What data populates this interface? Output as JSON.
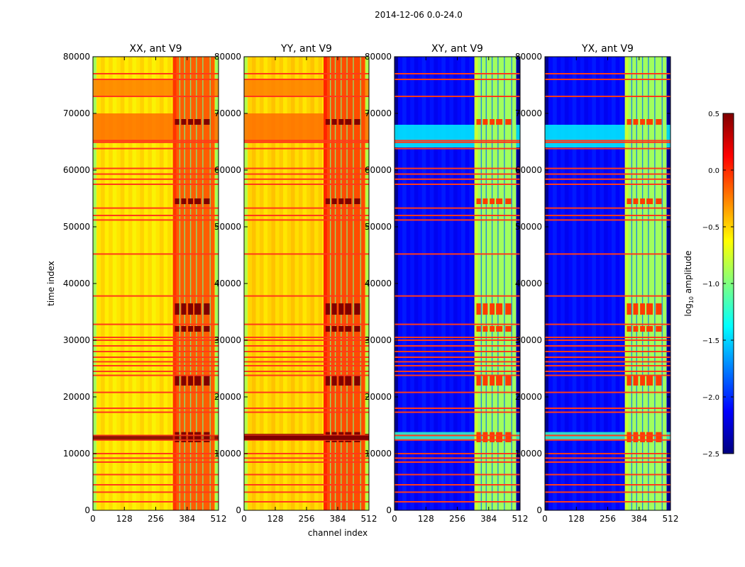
{
  "figure_title": "2014-12-06 0.0-24.0",
  "colormap": [
    "#00007f",
    "#0000ff",
    "#007fff",
    "#00ffff",
    "#7fff7f",
    "#ffff00",
    "#ff7f00",
    "#ff0000",
    "#7f0000"
  ],
  "chart_data": [
    {
      "type": "heatmap",
      "title": "XX, ant V9",
      "polarization": "XX",
      "ylabel": "time index",
      "xlabel": "",
      "xlim": [
        0,
        512
      ],
      "ylim": [
        0,
        80000
      ],
      "xticks": [
        0,
        128,
        256,
        384,
        512
      ],
      "yticks": [
        0,
        10000,
        20000,
        30000,
        40000,
        50000,
        60000,
        70000,
        80000
      ],
      "background_level": -0.55,
      "band_channels": [
        326,
        496
      ],
      "band_level": -0.15,
      "bright_time_ranges": [
        [
          65000,
          70000,
          -0.2
        ],
        [
          73000,
          76000,
          -0.25
        ],
        [
          12400,
          13200,
          0.5
        ]
      ],
      "flag_rows": [
        1500,
        3200,
        4500,
        6300,
        8500,
        9200,
        10000,
        12400,
        13200,
        17300,
        18000,
        20800,
        23800,
        24500,
        25500,
        26200,
        27000,
        28000,
        29000,
        30000,
        30500,
        32800,
        37800,
        45200,
        51200,
        52000,
        53300,
        57500,
        58400,
        59300,
        60300,
        63800,
        64900,
        65200,
        73000,
        76000,
        77000
      ]
    },
    {
      "type": "heatmap",
      "title": "YY, ant V9",
      "polarization": "YY",
      "ylabel": "",
      "xlabel": "channel index",
      "xlim": [
        0,
        512
      ],
      "ylim": [
        0,
        80000
      ],
      "xticks": [
        0,
        128,
        256,
        384,
        512
      ],
      "yticks": [
        0,
        10000,
        20000,
        30000,
        40000,
        50000,
        60000,
        70000,
        80000
      ],
      "background_level": -0.5,
      "band_channels": [
        326,
        496
      ],
      "band_level": -0.1,
      "bright_time_ranges": [
        [
          65000,
          70000,
          -0.2
        ],
        [
          73000,
          76000,
          -0.25
        ],
        [
          12400,
          13500,
          0.5
        ]
      ],
      "flag_rows": [
        1500,
        3200,
        4500,
        6300,
        8500,
        9200,
        10000,
        12400,
        13200,
        17300,
        18000,
        20800,
        23800,
        24500,
        25500,
        26200,
        27000,
        28000,
        29000,
        30000,
        30500,
        32800,
        37800,
        45200,
        51200,
        52000,
        53300,
        57500,
        58400,
        59300,
        60300,
        63800,
        64900,
        65200,
        73000,
        76000,
        77000
      ]
    },
    {
      "type": "heatmap",
      "title": "XY, ant V9",
      "polarization": "XY",
      "ylabel": "",
      "xlabel": "",
      "xlim": [
        0,
        512
      ],
      "ylim": [
        0,
        80000
      ],
      "xticks": [
        0,
        128,
        256,
        384,
        512
      ],
      "yticks": [
        0,
        10000,
        20000,
        30000,
        40000,
        50000,
        60000,
        70000,
        80000
      ],
      "background_level": -2.1,
      "band_channels": [
        326,
        496
      ],
      "band_level": -0.9,
      "bright_time_ranges": [
        [
          64000,
          68000,
          -1.4
        ],
        [
          12500,
          13800,
          -1.2
        ]
      ],
      "flag_rows": [
        1500,
        3200,
        4500,
        6300,
        8500,
        9200,
        10000,
        12400,
        13200,
        17300,
        18000,
        20800,
        23800,
        24500,
        25500,
        26200,
        27000,
        28000,
        29000,
        30000,
        30500,
        32800,
        37800,
        45200,
        51200,
        52000,
        53300,
        57500,
        58400,
        59300,
        60300,
        63800,
        64900,
        65200,
        73000,
        76000,
        77000
      ]
    },
    {
      "type": "heatmap",
      "title": "YX, ant V9",
      "polarization": "YX",
      "ylabel": "",
      "xlabel": "",
      "xlim": [
        0,
        512
      ],
      "ylim": [
        0,
        80000
      ],
      "xticks": [
        0,
        128,
        256,
        384,
        512
      ],
      "yticks": [
        0,
        10000,
        20000,
        30000,
        40000,
        50000,
        60000,
        70000,
        80000
      ],
      "background_level": -2.1,
      "band_channels": [
        326,
        496
      ],
      "band_level": -0.9,
      "bright_time_ranges": [
        [
          64000,
          68000,
          -1.4
        ],
        [
          12500,
          13800,
          -1.2
        ]
      ],
      "flag_rows": [
        1500,
        3200,
        4500,
        6300,
        8500,
        9200,
        10000,
        12400,
        13200,
        17300,
        18000,
        20800,
        23800,
        24500,
        25500,
        26200,
        27000,
        28000,
        29000,
        30000,
        30500,
        32800,
        37800,
        45200,
        51200,
        52000,
        53300,
        57500,
        58400,
        59300,
        60300,
        63800,
        64900,
        65200,
        73000,
        76000,
        77000
      ]
    }
  ],
  "colorbar": {
    "label": "log",
    "label_sub": "10",
    "label_rest": " amplitude",
    "vmin": -2.5,
    "vmax": 0.5,
    "ticks": [
      0.5,
      0.0,
      -0.5,
      -1.0,
      -1.5,
      -2.0,
      -2.5
    ],
    "tick_labels": [
      "0.5",
      "0.0",
      "−0.5",
      "−1.0",
      "−1.5",
      "−2.0",
      "−2.5"
    ]
  }
}
